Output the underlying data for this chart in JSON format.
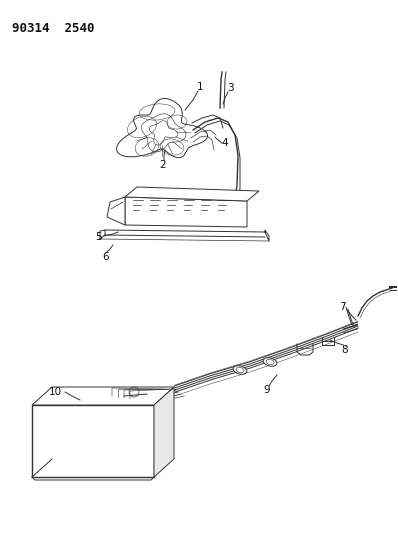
{
  "title": "90314  2540",
  "bg_color": "#ffffff",
  "line_color": "#333333",
  "label_color": "#111111",
  "fig_width": 3.98,
  "fig_height": 5.33,
  "dpi": 100,
  "title_fontsize": 9,
  "label_fontsize": 7.5
}
